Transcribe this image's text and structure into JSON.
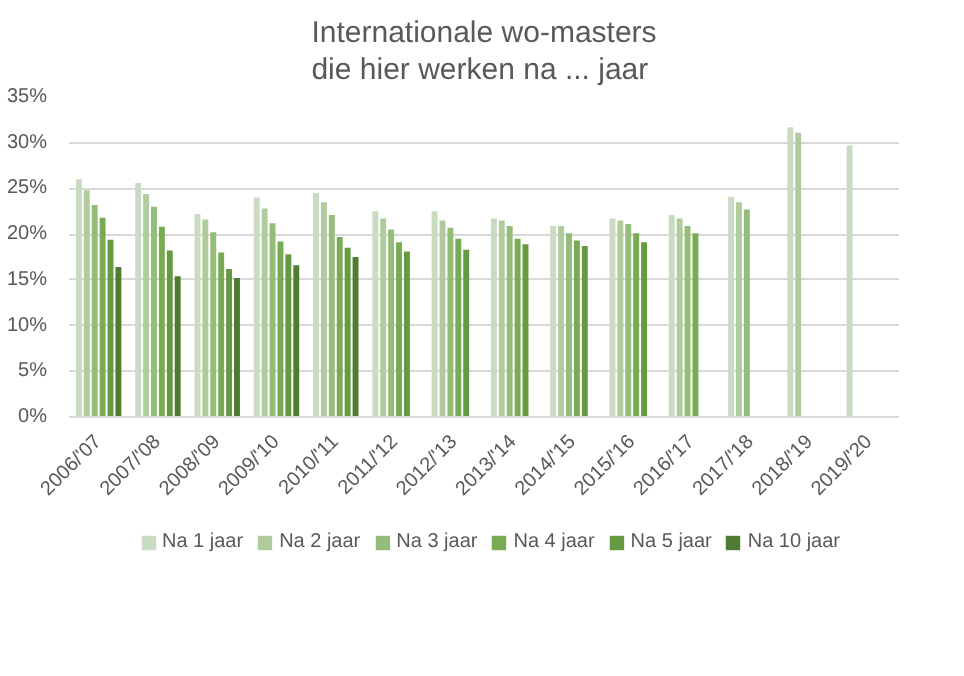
{
  "chart_data": {
    "type": "bar",
    "title": "Internationale wo-masters\ndie hier werken na ... jaar",
    "categories": [
      "2006/'07",
      "2007/'08",
      "2008/'09",
      "2009/'10",
      "2010/'11",
      "2011/'12",
      "2012/'13",
      "2013/'14",
      "2014/'15",
      "2015/'16",
      "2016/'17",
      "2017/'18",
      "2018/'19",
      "2019/'20"
    ],
    "series": [
      {
        "name": "Na 1 jaar",
        "color": "#c9dbc0",
        "values": [
          26.0,
          25.6,
          22.2,
          24.0,
          24.5,
          22.5,
          22.5,
          21.7,
          20.9,
          21.7,
          22.1,
          24.1,
          31.7,
          29.7
        ]
      },
      {
        "name": "Na 2 jaar",
        "color": "#b0cc9e",
        "values": [
          24.8,
          24.4,
          21.6,
          22.8,
          23.5,
          21.7,
          21.5,
          21.5,
          20.9,
          21.5,
          21.7,
          23.5,
          31.1,
          null
        ]
      },
      {
        "name": "Na 3 jaar",
        "color": "#93bd78",
        "values": [
          23.2,
          23.0,
          20.2,
          21.2,
          22.1,
          20.5,
          20.7,
          20.9,
          20.1,
          21.1,
          20.9,
          22.7,
          null,
          null
        ]
      },
      {
        "name": "Na 4 jaar",
        "color": "#79ab55",
        "values": [
          21.8,
          20.8,
          18.0,
          19.2,
          19.7,
          19.1,
          19.5,
          19.5,
          19.3,
          20.1,
          20.1,
          null,
          null,
          null
        ]
      },
      {
        "name": "Na 5 jaar",
        "color": "#659a40",
        "values": [
          19.4,
          18.2,
          16.2,
          17.8,
          18.5,
          18.1,
          18.3,
          18.9,
          18.7,
          19.1,
          null,
          null,
          null,
          null
        ]
      },
      {
        "name": "Na 10 jaar",
        "color": "#4f7b32",
        "values": [
          16.4,
          15.4,
          15.2,
          16.6,
          17.5,
          null,
          null,
          null,
          null,
          null,
          null,
          null,
          null,
          null
        ]
      }
    ],
    "ylim": [
      0,
      35
    ],
    "yticks": [
      {
        "value": 0,
        "label": "0%"
      },
      {
        "value": 5,
        "label": "5%"
      },
      {
        "value": 10,
        "label": "10%"
      },
      {
        "value": 15,
        "label": "15%"
      },
      {
        "value": 20,
        "label": "20%"
      },
      {
        "value": 25,
        "label": "25%"
      },
      {
        "value": 30,
        "label": "30%"
      },
      {
        "value": 35,
        "label": "35%"
      }
    ],
    "grid": "y",
    "legend": "bottom"
  }
}
